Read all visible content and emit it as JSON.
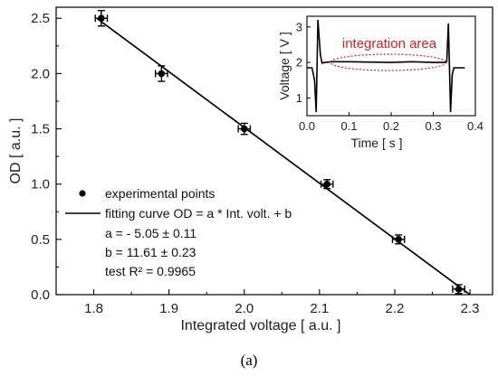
{
  "chart_data": [
    {
      "type": "scatter",
      "xlabel": "Integrated voltage [ a.u. ]",
      "ylabel": "OD [ a.u. ]",
      "xlim": [
        1.75,
        2.33
      ],
      "ylim": [
        0.0,
        2.6
      ],
      "xticks": [
        "1.8",
        "1.9",
        "2.0",
        "2.1",
        "2.2",
        "2.3"
      ],
      "yticks": [
        "0.0",
        "0.5",
        "1.0",
        "1.5",
        "2.0",
        "2.5"
      ],
      "grid": false,
      "legend_placement": "bottom-left",
      "series": [
        {
          "name": "experimental points",
          "x": [
            1.81,
            1.89,
            2.0,
            2.11,
            2.205,
            2.285
          ],
          "y": [
            2.5,
            2.0,
            1.5,
            1.0,
            0.5,
            0.05
          ],
          "x_err": [
            0.008,
            0.008,
            0.008,
            0.008,
            0.008,
            0.008
          ],
          "y_err": [
            0.07,
            0.07,
            0.05,
            0.04,
            0.04,
            0.04
          ]
        },
        {
          "name": "fitting curve OD = a * Int. volt. + b",
          "type": "line",
          "x": [
            1.805,
            2.3
          ],
          "y": [
            2.495,
            0.0
          ]
        }
      ],
      "annotations": [
        "a = - 5.05 ± 0.11",
        "b = 11.61 ± 0.23",
        "test R² = 0.9965"
      ],
      "color": "#000000"
    },
    {
      "type": "line",
      "xlabel": "Time  [ s ]",
      "ylabel": "Voltage [ V ]",
      "xlim": [
        0.0,
        0.4
      ],
      "ylim": [
        0.5,
        3.3
      ],
      "xticks": [
        "0.0",
        "0.1",
        "0.2",
        "0.3",
        "0.4"
      ],
      "yticks": [
        "1",
        "2",
        "3"
      ],
      "annotation": "integration area",
      "annotation_color": "#d42020",
      "series": [
        {
          "x": [
            0.0,
            0.012,
            0.018,
            0.022,
            0.026,
            0.032,
            0.036,
            0.042,
            0.06,
            0.1,
            0.15,
            0.2,
            0.25,
            0.3,
            0.325,
            0.332,
            0.336,
            0.341,
            0.345,
            0.349,
            0.355,
            0.375
          ],
          "y": [
            1.85,
            1.85,
            1.5,
            0.6,
            3.2,
            2.2,
            1.98,
            2.0,
            2.02,
            2.02,
            2.01,
            2.0,
            2.02,
            2.0,
            2.0,
            2.02,
            3.1,
            0.6,
            1.65,
            1.85,
            1.85,
            1.85
          ]
        }
      ]
    }
  ],
  "caption": "(a)"
}
